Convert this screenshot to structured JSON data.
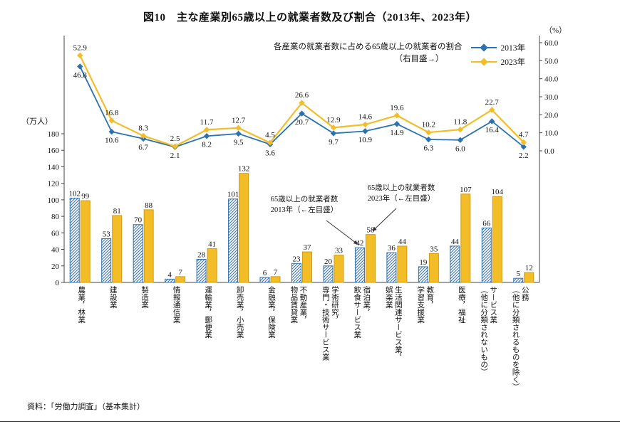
{
  "page": {
    "source": "資料：「労働力調査」（基本集計）"
  },
  "chart_data": {
    "type": "bar+line",
    "title": "図10　主な産業別65歳以上の就業者数及び割合（2013年、2023年）",
    "categories": [
      "農業，林業",
      "建設業",
      "製造業",
      "情報通信業",
      "運輸業，郵便業",
      "卸売業，小売業",
      "金融業，保険業",
      "不動産業，\n物品賃貸業",
      "学術研究，\n専門・技術サービス業",
      "宿泊業，\n飲食サービス業",
      "生活関連サービス業，\n娯楽業",
      "教育，\n学習支援業",
      "医療，福祉",
      "サービス業\n（他に分類されないもの）",
      "公務\n（他に分類されるものを除く）"
    ],
    "bar_series": [
      {
        "name": "65歳以上の就業者数 2013年（←左目盛）",
        "style": "hatched",
        "color": "#2C72B0",
        "values": [
          102,
          53,
          70,
          4,
          28,
          101,
          6,
          23,
          20,
          42,
          36,
          19,
          44,
          66,
          5
        ]
      },
      {
        "name": "65歳以上の就業者数 2023年（←左目盛）",
        "style": "solid",
        "color": "#F3BD27",
        "values": [
          99,
          81,
          88,
          7,
          41,
          132,
          7,
          37,
          33,
          58,
          44,
          35,
          107,
          104,
          12
        ]
      }
    ],
    "line_series": [
      {
        "name": "2013年",
        "color": "#2C72B0",
        "values": [
          46.8,
          10.6,
          6.7,
          2.1,
          8.2,
          9.5,
          3.6,
          20.7,
          9.7,
          10.9,
          14.9,
          6.3,
          6.0,
          16.4,
          2.2
        ]
      },
      {
        "name": "2023年",
        "color": "#F3BD27",
        "values": [
          52.9,
          16.8,
          8.3,
          2.5,
          11.7,
          12.7,
          4.5,
          26.6,
          12.9,
          14.6,
          19.6,
          10.2,
          11.8,
          22.7,
          4.7
        ]
      }
    ],
    "left_axis": {
      "unit": "（万人）",
      "ticks": [
        0,
        20,
        40,
        60,
        80,
        100,
        120,
        140,
        160,
        180
      ],
      "max": 180
    },
    "right_axis": {
      "unit": "（%）",
      "ticks": [
        "0.0",
        "10.0",
        "20.0",
        "30.0",
        "40.0",
        "50.0",
        "60.0"
      ],
      "max": 60
    },
    "legend": {
      "title_line1": "各産業の就業者数に占める65歳以上の就業者の割合",
      "title_line2": "（右目盛→）",
      "items": [
        {
          "label": "2013年",
          "color": "#2C72B0"
        },
        {
          "label": "2023年",
          "color": "#F3BD27"
        }
      ]
    },
    "annotations": [
      {
        "lines": [
          "65歳以上の就業者数",
          "2013年（←左目盛）"
        ]
      },
      {
        "lines": [
          "65歳以上の就業者数",
          "2023年（←左目盛）"
        ]
      }
    ]
  }
}
